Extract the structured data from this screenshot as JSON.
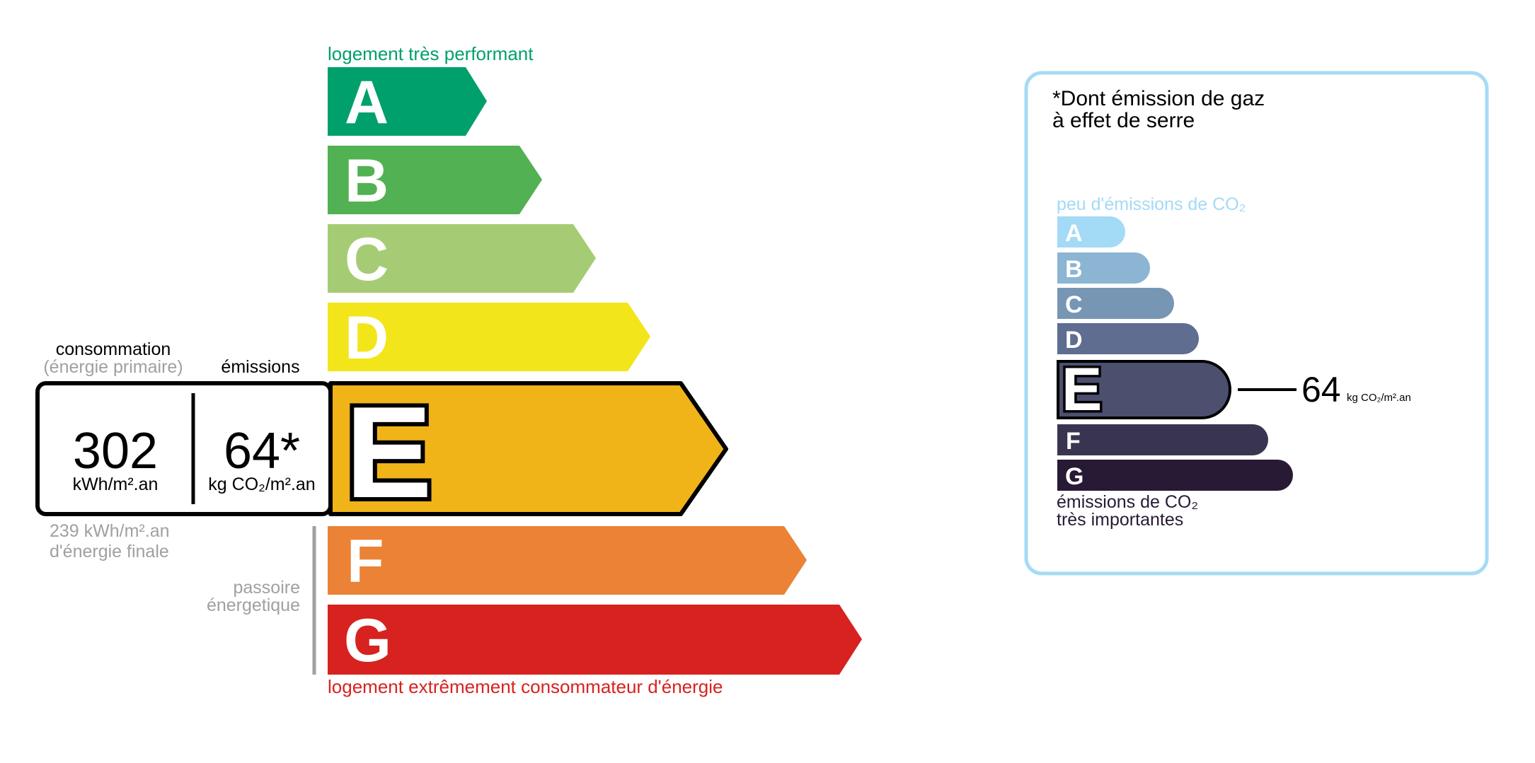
{
  "energy_scale": {
    "top_label": "logement très performant",
    "bottom_label": "logement extrêmement consommateur d'énergie",
    "classes": [
      {
        "letter": "A",
        "color": "#00a06d"
      },
      {
        "letter": "B",
        "color": "#52b153"
      },
      {
        "letter": "C",
        "color": "#a5cc74"
      },
      {
        "letter": "D",
        "color": "#f2e51a"
      },
      {
        "letter": "E",
        "color": "#f0b419"
      },
      {
        "letter": "F",
        "color": "#eb8235"
      },
      {
        "letter": "G",
        "color": "#d7221f"
      }
    ],
    "current_class": "E",
    "consumption_label": "consommation",
    "consumption_sublabel": "(énergie primaire)",
    "emissions_label": "émissions",
    "consumption_value": "302",
    "consumption_unit": "kWh/m².an",
    "emissions_value": "64*",
    "emissions_unit": "kg CO₂/m².an",
    "final_energy_line1": "239 kWh/m².an",
    "final_energy_line2": "d'énergie finale",
    "passoire_line1": "passoire",
    "passoire_line2": "énergetique"
  },
  "ges_panel": {
    "title_line1": "*Dont émission de gaz",
    "title_line2": "à effet de serre",
    "top_label": "peu d'émissions de CO₂",
    "bottom_label_line1": "émissions de CO₂",
    "bottom_label_line2": "très importantes",
    "border_color": "#a6dbf5",
    "classes": [
      {
        "letter": "A",
        "color": "#a3daf6"
      },
      {
        "letter": "B",
        "color": "#8cb4d3"
      },
      {
        "letter": "C",
        "color": "#7796b4"
      },
      {
        "letter": "D",
        "color": "#5f6d91"
      },
      {
        "letter": "E",
        "color": "#4c4f6e"
      },
      {
        "letter": "F",
        "color": "#393551"
      },
      {
        "letter": "G",
        "color": "#281a35"
      }
    ],
    "current_class": "E",
    "value": "64",
    "unit": "kg CO₂/m².an"
  }
}
